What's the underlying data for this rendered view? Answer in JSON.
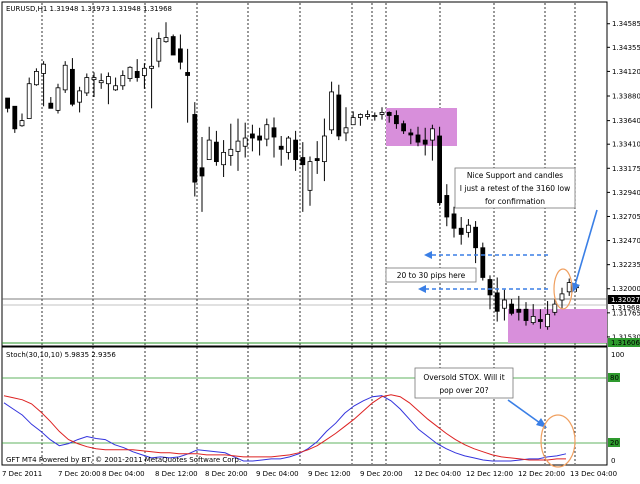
{
  "header": {
    "symbol_line": "EURUSD,H1  1.31948  1.31973  1.31948  1.31968"
  },
  "price_axis": {
    "ticks": [
      "1.34585",
      "1.34355",
      "1.34120",
      "1.33880",
      "1.33640",
      "1.33410",
      "1.33175",
      "1.32940",
      "1.32705",
      "1.32470",
      "1.32235",
      "1.32000",
      "1.31765",
      "1.31530"
    ],
    "current_badge": "1.32027",
    "second_badge": "1.31968",
    "low_badge": "1.31606"
  },
  "time_axis": {
    "labels": [
      "7 Dec 2011",
      "7 Dec 20:00",
      "8 Dec 04:00",
      "8 Dec 12:00",
      "8 Dec 20:00",
      "9 Dec 04:00",
      "9 Dec 12:00",
      "9 Dec 20:00",
      "12 Dec 04:00",
      "12 Dec 12:00",
      "12 Dec 20:00",
      "13 Dec 04:00"
    ]
  },
  "annotations": {
    "support_note": [
      "Nice Support and candles",
      "I just a retest of the 3160 low",
      "for confirmation"
    ],
    "pips_note": "20 to 30 pips here",
    "stoch_note": [
      "Oversold STOX. Will it",
      "pop over 20?"
    ]
  },
  "indicator": {
    "title": "Stoch(30,10,10)  5.9835  2.9356",
    "ticks": [
      "100",
      "80",
      "20",
      "0"
    ],
    "level_80": "80",
    "level_20": "20"
  },
  "footer": {
    "credit": "GFT MT4 Powered by BT, © 2001-2011 MetaQuotes Software Corp."
  },
  "colors": {
    "zone": "#d88fdb",
    "arrow": "#3a7fe6",
    "callout_ring": "#f0a060",
    "stoch_main": "#3333dd",
    "stoch_signal": "#dd2222",
    "levels": "#2e9a2e"
  },
  "chart_data": {
    "type": "candlestick",
    "symbol": "EURUSD",
    "timeframe": "H1",
    "ylim": [
      1.315,
      1.3468
    ],
    "candles": [
      [
        1.3386,
        1.338,
        1.3376,
        1.3372
      ],
      [
        1.3378,
        1.3376,
        1.3356,
        1.3352
      ],
      [
        1.3359,
        1.3371,
        1.3364,
        1.3358
      ],
      [
        1.3366,
        1.3406,
        1.34,
        1.3399
      ],
      [
        1.3399,
        1.3415,
        1.3412,
        1.3398
      ],
      [
        1.341,
        1.3422,
        1.3419,
        1.3378
      ],
      [
        1.3381,
        1.3387,
        1.3376,
        1.3378
      ],
      [
        1.3374,
        1.34,
        1.3396,
        1.3371
      ],
      [
        1.3394,
        1.3422,
        1.3418,
        1.3391
      ],
      [
        1.3414,
        1.3425,
        1.338,
        1.3378
      ],
      [
        1.3382,
        1.3397,
        1.3393,
        1.3372
      ],
      [
        1.3391,
        1.341,
        1.3406,
        1.3388
      ],
      [
        1.3404,
        1.3411,
        1.3406,
        1.3387
      ],
      [
        1.3401,
        1.341,
        1.3403,
        1.3395
      ],
      [
        1.34,
        1.3411,
        1.3407,
        1.338
      ],
      [
        1.3394,
        1.3406,
        1.3398,
        1.3393
      ],
      [
        1.3398,
        1.3413,
        1.3408,
        1.3394
      ],
      [
        1.3405,
        1.3417,
        1.3416,
        1.3402
      ],
      [
        1.3412,
        1.3424,
        1.3406,
        1.3402
      ],
      [
        1.3408,
        1.342,
        1.3415,
        1.3395
      ],
      [
        1.3415,
        1.3445,
        1.3417,
        1.3376
      ],
      [
        1.3422,
        1.345,
        1.3444,
        1.3416
      ],
      [
        1.3441,
        1.346,
        1.3445,
        1.344
      ],
      [
        1.3446,
        1.3448,
        1.3428,
        1.3429
      ],
      [
        1.3434,
        1.3448,
        1.3421,
        1.3414
      ],
      [
        1.3411,
        1.3434,
        1.3408,
        1.3362
      ],
      [
        1.337,
        1.3382,
        1.3304,
        1.329
      ],
      [
        1.3318,
        1.3348,
        1.331,
        1.3275
      ],
      [
        1.3326,
        1.3358,
        1.3345,
        1.3326
      ],
      [
        1.3343,
        1.3354,
        1.3324,
        1.332
      ],
      [
        1.3321,
        1.3345,
        1.3333,
        1.3309
      ],
      [
        1.333,
        1.3361,
        1.3336,
        1.332
      ],
      [
        1.3334,
        1.3366,
        1.3344,
        1.3315
      ],
      [
        1.3339,
        1.3362,
        1.3347,
        1.3328
      ],
      [
        1.3351,
        1.336,
        1.3347,
        1.3334
      ],
      [
        1.3349,
        1.3357,
        1.3345,
        1.333
      ],
      [
        1.3346,
        1.3366,
        1.336,
        1.3339
      ],
      [
        1.3357,
        1.3367,
        1.3348,
        1.3328
      ],
      [
        1.3339,
        1.3349,
        1.3336,
        1.332
      ],
      [
        1.3333,
        1.3349,
        1.3347,
        1.3326
      ],
      [
        1.3345,
        1.3354,
        1.3326,
        1.3315
      ],
      [
        1.3328,
        1.3343,
        1.3321,
        1.3275
      ],
      [
        1.3296,
        1.3329,
        1.3324,
        1.3281
      ],
      [
        1.3327,
        1.3344,
        1.3325,
        1.3312
      ],
      [
        1.3324,
        1.3366,
        1.3349,
        1.3305
      ],
      [
        1.3355,
        1.3402,
        1.3392,
        1.3351
      ],
      [
        1.3389,
        1.3399,
        1.3349,
        1.3345
      ],
      [
        1.3352,
        1.3377,
        1.3357,
        1.3344
      ],
      [
        1.336,
        1.3373,
        1.3367,
        1.336
      ],
      [
        1.3367,
        1.3371,
        1.337,
        1.3359
      ],
      [
        1.3368,
        1.3374,
        1.337,
        1.3365
      ],
      [
        1.3368,
        1.3372,
        1.3369,
        1.3364
      ],
      [
        1.337,
        1.3377,
        1.3372,
        1.3365
      ],
      [
        1.3372,
        1.3373,
        1.3369,
        1.3362
      ],
      [
        1.3369,
        1.3374,
        1.3361,
        1.3356
      ],
      [
        1.3361,
        1.3364,
        1.3354,
        1.3351
      ],
      [
        1.3352,
        1.3356,
        1.335,
        1.3341
      ],
      [
        1.335,
        1.3358,
        1.3343,
        1.3339
      ],
      [
        1.3345,
        1.3357,
        1.3341,
        1.333
      ],
      [
        1.3345,
        1.336,
        1.3356,
        1.3325
      ],
      [
        1.3349,
        1.3358,
        1.3284,
        1.3281
      ],
      [
        1.3291,
        1.3302,
        1.327,
        1.3261
      ],
      [
        1.3273,
        1.328,
        1.3259,
        1.325
      ],
      [
        1.3259,
        1.327,
        1.3253,
        1.3243
      ],
      [
        1.3255,
        1.3268,
        1.3262,
        1.325
      ],
      [
        1.326,
        1.3266,
        1.324,
        1.3225
      ],
      [
        1.324,
        1.3245,
        1.3211,
        1.3208
      ],
      [
        1.3209,
        1.3213,
        1.3194,
        1.318
      ],
      [
        1.3196,
        1.3211,
        1.3178,
        1.3168
      ],
      [
        1.3181,
        1.3199,
        1.3189,
        1.3169
      ],
      [
        1.3185,
        1.319,
        1.3176,
        1.3174
      ],
      [
        1.318,
        1.3193,
        1.3177,
        1.3169
      ],
      [
        1.318,
        1.3187,
        1.3169,
        1.3164
      ],
      [
        1.3167,
        1.3185,
        1.3173,
        1.3165
      ],
      [
        1.317,
        1.318,
        1.3168,
        1.3161
      ],
      [
        1.3163,
        1.3188,
        1.3175,
        1.316
      ],
      [
        1.3177,
        1.319,
        1.3185,
        1.3174
      ],
      [
        1.3189,
        1.3201,
        1.3195,
        1.3181
      ],
      [
        1.3197,
        1.321,
        1.3206,
        1.3193
      ],
      [
        1.3202,
        1.3205,
        1.3201,
        1.3197
      ]
    ],
    "horizontal_lines": [
      1.3203,
      1.3161
    ],
    "support_zone": [
      1.3161,
      1.3197
    ],
    "resistance_zone": [
      1.3359,
      1.3375
    ],
    "stochastic": {
      "main": [
        58,
        52,
        46,
        37,
        30,
        22,
        16,
        18,
        22,
        25,
        23,
        22,
        17,
        14,
        10,
        7,
        4,
        5,
        4,
        5,
        8,
        12,
        11,
        10,
        9,
        5,
        1,
        1,
        2,
        3,
        3,
        5,
        8,
        13,
        20,
        30,
        38,
        48,
        55,
        60,
        64,
        65,
        60,
        52,
        42,
        32,
        25,
        18,
        13,
        9,
        6,
        4,
        2,
        1,
        1,
        1,
        2,
        3,
        3,
        5,
        6,
        8
      ],
      "signal": [
        65,
        63,
        61,
        57,
        49,
        40,
        30,
        22,
        18,
        15,
        13,
        12,
        12,
        12,
        12,
        11,
        10,
        9,
        9,
        8,
        8,
        8,
        7,
        7,
        7,
        6,
        5,
        5,
        5,
        5,
        6,
        7,
        9,
        12,
        16,
        22,
        28,
        35,
        42,
        50,
        58,
        64,
        66,
        64,
        58,
        50,
        42,
        35,
        28,
        22,
        17,
        13,
        10,
        7,
        5,
        4,
        3,
        2,
        2,
        2,
        3,
        3
      ]
    }
  }
}
